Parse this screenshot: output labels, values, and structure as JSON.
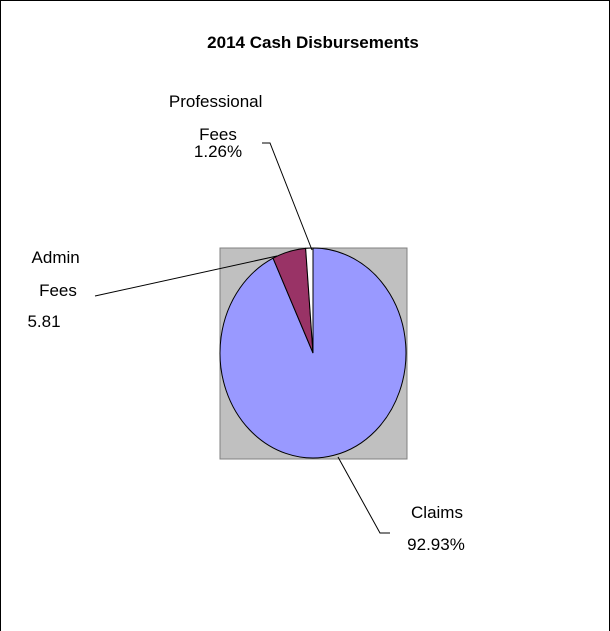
{
  "chart_data": {
    "type": "pie",
    "title": "2014 Cash Disbursements",
    "categories": [
      "Claims",
      "Admin Fees",
      "Professional Fees"
    ],
    "values": [
      92.93,
      5.81,
      1.26
    ],
    "value_labels": [
      "92.93%",
      "5.81",
      "1.26%"
    ],
    "colors": [
      "#9999ff",
      "#993366",
      "#ffffff"
    ]
  }
}
